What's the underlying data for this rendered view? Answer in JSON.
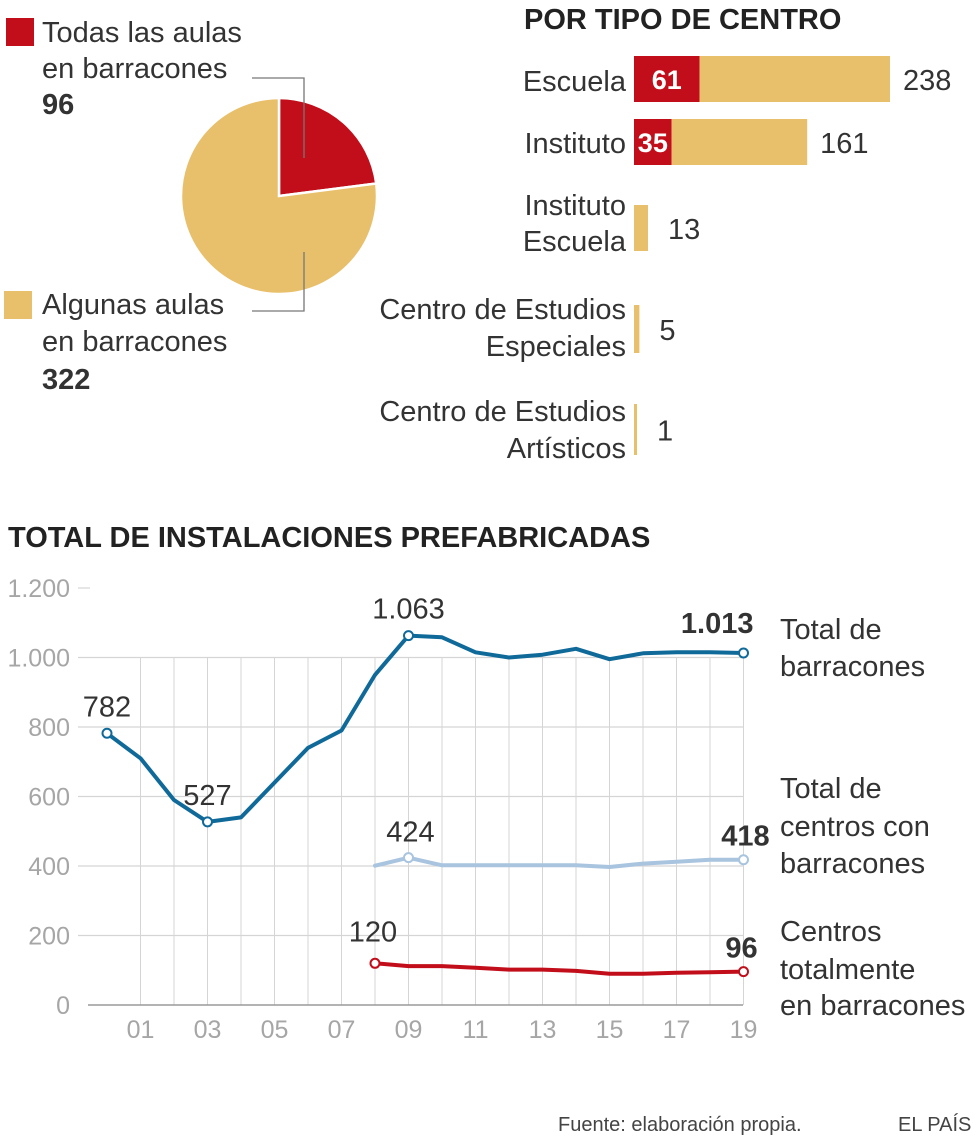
{
  "colors": {
    "red": "#c20e1a",
    "yellow": "#e8bf6b",
    "blue": "#0f6a99",
    "lightblue": "#a9c4de",
    "grid": "#d5d5d5",
    "axis": "#9a9a9a"
  },
  "chart_data": [
    {
      "type": "pie",
      "slices": [
        {
          "name": "all",
          "label_lines": [
            "Todas las aulas",
            "en barracones"
          ],
          "value": 96,
          "value_label": "96",
          "color": "#c20e1a"
        },
        {
          "name": "some",
          "label_lines": [
            "Algunas aulas",
            "en barracones"
          ],
          "value": 322,
          "value_label": "322",
          "color": "#e8bf6b"
        }
      ]
    },
    {
      "type": "bar",
      "title": "POR TIPO DE CENTRO",
      "orientation": "horizontal",
      "stacked": true,
      "categories": [
        {
          "lines": [
            "Escuela"
          ],
          "red": 61,
          "yellow": 177,
          "total": 238,
          "red_label": "61",
          "total_label": "238"
        },
        {
          "lines": [
            "Instituto"
          ],
          "red": 35,
          "yellow": 126,
          "total": 161,
          "red_label": "35",
          "total_label": "161"
        },
        {
          "lines": [
            "Instituto",
            "Escuela"
          ],
          "red": 0,
          "yellow": 13,
          "total": 13,
          "red_label": "",
          "total_label": "13"
        },
        {
          "lines": [
            "Centro de Estudios",
            "Especiales"
          ],
          "red": 0,
          "yellow": 5,
          "total": 5,
          "red_label": "",
          "total_label": "5"
        },
        {
          "lines": [
            "Centro de Estudios",
            "Artísticos"
          ],
          "red": 0,
          "yellow": 1,
          "total": 1,
          "red_label": "",
          "total_label": "1"
        }
      ],
      "xlim": [
        0,
        238
      ]
    },
    {
      "type": "line",
      "title": "TOTAL DE INSTALACIONES PREFABRICADAS",
      "ylim": [
        0,
        1200
      ],
      "yticks": [
        0,
        200,
        400,
        600,
        800,
        1000,
        1200
      ],
      "ytick_labels": [
        "0",
        "200",
        "400",
        "600",
        "800",
        "1.000",
        "1.200"
      ],
      "x_range": [
        2000,
        2019
      ],
      "xticks": [
        2001,
        2003,
        2005,
        2007,
        2009,
        2011,
        2013,
        2015,
        2017,
        2019
      ],
      "xtick_labels": [
        "01",
        "03",
        "05",
        "07",
        "09",
        "11",
        "13",
        "15",
        "17",
        "19"
      ],
      "series": [
        {
          "name": "total",
          "label_lines": [
            "Total de",
            "barracones"
          ],
          "color": "#0f6a99",
          "x": [
            2000,
            2001,
            2002,
            2003,
            2004,
            2005,
            2006,
            2007,
            2008,
            2009,
            2010,
            2011,
            2012,
            2013,
            2014,
            2015,
            2016,
            2017,
            2018,
            2019
          ],
          "values": [
            782,
            710,
            590,
            527,
            540,
            640,
            740,
            790,
            950,
            1063,
            1058,
            1015,
            1000,
            1008,
            1025,
            995,
            1012,
            1015,
            1015,
            1013
          ],
          "annotations": [
            {
              "x": 2000,
              "value": 782,
              "label": "782",
              "bold": false,
              "pos": "above"
            },
            {
              "x": 2003,
              "value": 527,
              "label": "527",
              "bold": false,
              "pos": "above"
            },
            {
              "x": 2009,
              "value": 1063,
              "label": "1.063",
              "bold": false,
              "pos": "above"
            },
            {
              "x": 2019,
              "value": 1013,
              "label": "1.013",
              "bold": true,
              "pos": "above-left"
            }
          ]
        },
        {
          "name": "centers",
          "label_lines": [
            "Total de",
            "centros con",
            "barracones"
          ],
          "color": "#a9c4de",
          "x": [
            2008,
            2009,
            2010,
            2011,
            2012,
            2013,
            2014,
            2015,
            2016,
            2017,
            2018,
            2019
          ],
          "values": [
            401,
            424,
            402,
            402,
            402,
            402,
            402,
            397,
            407,
            412,
            418,
            418
          ],
          "annotations": [
            {
              "x": 2009,
              "value": 424,
              "label": "424",
              "bold": false,
              "pos": "above"
            },
            {
              "x": 2019,
              "value": 418,
              "label": "418",
              "bold": true,
              "pos": "above"
            }
          ]
        },
        {
          "name": "full",
          "label_lines": [
            "Centros",
            "totalmente",
            "en barracones"
          ],
          "color": "#c20e1a",
          "x": [
            2008,
            2009,
            2010,
            2011,
            2012,
            2013,
            2014,
            2015,
            2016,
            2017,
            2018,
            2019
          ],
          "values": [
            120,
            112,
            112,
            107,
            102,
            102,
            98,
            90,
            90,
            93,
            94,
            96
          ],
          "annotations": [
            {
              "x": 2008,
              "value": 120,
              "label": "120",
              "bold": false,
              "pos": "above"
            },
            {
              "x": 2019,
              "value": 96,
              "label": "96",
              "bold": true,
              "pos": "above"
            }
          ]
        }
      ]
    }
  ],
  "footer": {
    "source": "Fuente: elaboración propia.",
    "brand": "EL PAÍS"
  }
}
